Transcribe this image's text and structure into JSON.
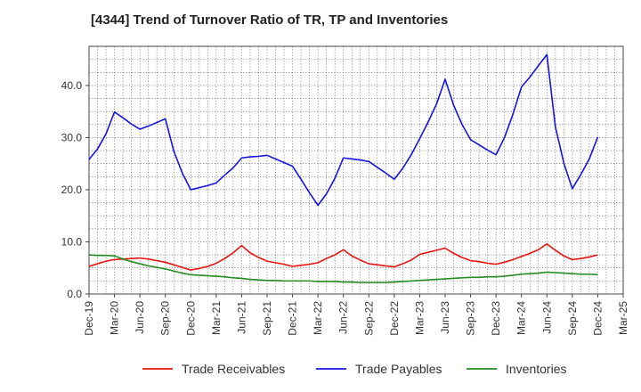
{
  "chart_data": {
    "type": "line",
    "title": "[4344]  Trend of Turnover Ratio of TR, TP and Inventories",
    "xlabel": "",
    "ylabel": "",
    "x_tick_labels": [
      "Dec-19",
      "Mar-20",
      "Jun-20",
      "Sep-20",
      "Dec-20",
      "Mar-21",
      "Jun-21",
      "Sep-21",
      "Dec-21",
      "Mar-22",
      "Jun-22",
      "Sep-22",
      "Dec-22",
      "Mar-23",
      "Jun-23",
      "Sep-23",
      "Dec-23",
      "Mar-24",
      "Jun-24",
      "Sep-24",
      "Dec-24",
      "Mar-25"
    ],
    "y_tick_labels": [
      "0.0",
      "10.0",
      "20.0",
      "30.0",
      "40.0"
    ],
    "ylim": [
      0,
      47.5
    ],
    "grid": true,
    "legend_position": "bottom",
    "x": [
      "Dec-19",
      "Jan-20",
      "Feb-20",
      "Mar-20",
      "Apr-20",
      "May-20",
      "Jun-20",
      "Jul-20",
      "Aug-20",
      "Sep-20",
      "Oct-20",
      "Nov-20",
      "Dec-20",
      "Jan-21",
      "Feb-21",
      "Mar-21",
      "Apr-21",
      "May-21",
      "Jun-21",
      "Jul-21",
      "Aug-21",
      "Sep-21",
      "Oct-21",
      "Nov-21",
      "Dec-21",
      "Jan-22",
      "Feb-22",
      "Mar-22",
      "Apr-22",
      "May-22",
      "Jun-22",
      "Jul-22",
      "Aug-22",
      "Sep-22",
      "Oct-22",
      "Nov-22",
      "Dec-22",
      "Jan-23",
      "Feb-23",
      "Mar-23",
      "Apr-23",
      "May-23",
      "Jun-23",
      "Jul-23",
      "Aug-23",
      "Sep-23",
      "Oct-23",
      "Nov-23",
      "Dec-23",
      "Jan-24",
      "Feb-24",
      "Mar-24",
      "Apr-24",
      "May-24",
      "Jun-24",
      "Jul-24",
      "Aug-24",
      "Sep-24",
      "Oct-24",
      "Nov-24",
      "Dec-24"
    ],
    "series": [
      {
        "name": "Trade Receivables",
        "color": "#e8140f",
        "values": [
          5.3,
          5.8,
          6.3,
          6.6,
          6.7,
          6.8,
          6.9,
          6.7,
          6.4,
          6.1,
          5.6,
          5.1,
          4.6,
          4.9,
          5.3,
          5.9,
          6.8,
          7.9,
          9.3,
          7.9,
          7.0,
          6.3,
          6.0,
          5.7,
          5.3,
          5.5,
          5.7,
          6.0,
          6.8,
          7.5,
          8.5,
          7.3,
          6.5,
          5.8,
          5.6,
          5.4,
          5.2,
          5.8,
          6.5,
          7.6,
          8.0,
          8.4,
          8.8,
          7.8,
          7.0,
          6.4,
          6.2,
          5.9,
          5.7,
          6.1,
          6.6,
          7.2,
          7.8,
          8.5,
          9.6,
          8.4,
          7.3,
          6.6,
          6.8,
          7.1,
          7.5
        ]
      },
      {
        "name": "Trade Payables",
        "color": "#1414e6",
        "values": [
          25.8,
          27.8,
          30.7,
          34.9,
          33.8,
          32.6,
          31.6,
          32.2,
          32.9,
          33.6,
          27.4,
          23.2,
          20.0,
          20.4,
          20.8,
          21.3,
          22.8,
          24.2,
          26.1,
          26.3,
          26.4,
          26.6,
          25.9,
          25.2,
          24.5,
          22.0,
          19.4,
          17.0,
          19.2,
          22.2,
          26.1,
          25.9,
          25.7,
          25.4,
          24.3,
          23.2,
          22.0,
          24.1,
          26.7,
          29.8,
          33.0,
          36.5,
          41.2,
          36.2,
          32.5,
          29.6,
          28.6,
          27.6,
          26.7,
          30.0,
          34.5,
          39.7,
          41.6,
          43.8,
          45.9,
          32.1,
          25.1,
          20.2,
          22.9,
          25.9,
          30.1
        ]
      },
      {
        "name": "Inventories",
        "color": "#228b22",
        "values": [
          7.5,
          7.4,
          7.4,
          7.3,
          6.7,
          6.2,
          5.8,
          5.4,
          5.1,
          4.8,
          4.4,
          4.0,
          3.7,
          3.6,
          3.5,
          3.4,
          3.3,
          3.1,
          3.0,
          2.8,
          2.7,
          2.6,
          2.6,
          2.5,
          2.5,
          2.5,
          2.5,
          2.4,
          2.4,
          2.4,
          2.3,
          2.3,
          2.2,
          2.2,
          2.2,
          2.2,
          2.3,
          2.4,
          2.5,
          2.6,
          2.7,
          2.8,
          2.9,
          3.0,
          3.1,
          3.2,
          3.2,
          3.3,
          3.3,
          3.4,
          3.6,
          3.8,
          3.9,
          4.0,
          4.2,
          4.1,
          4.0,
          3.9,
          3.8,
          3.8,
          3.7
        ]
      }
    ]
  }
}
